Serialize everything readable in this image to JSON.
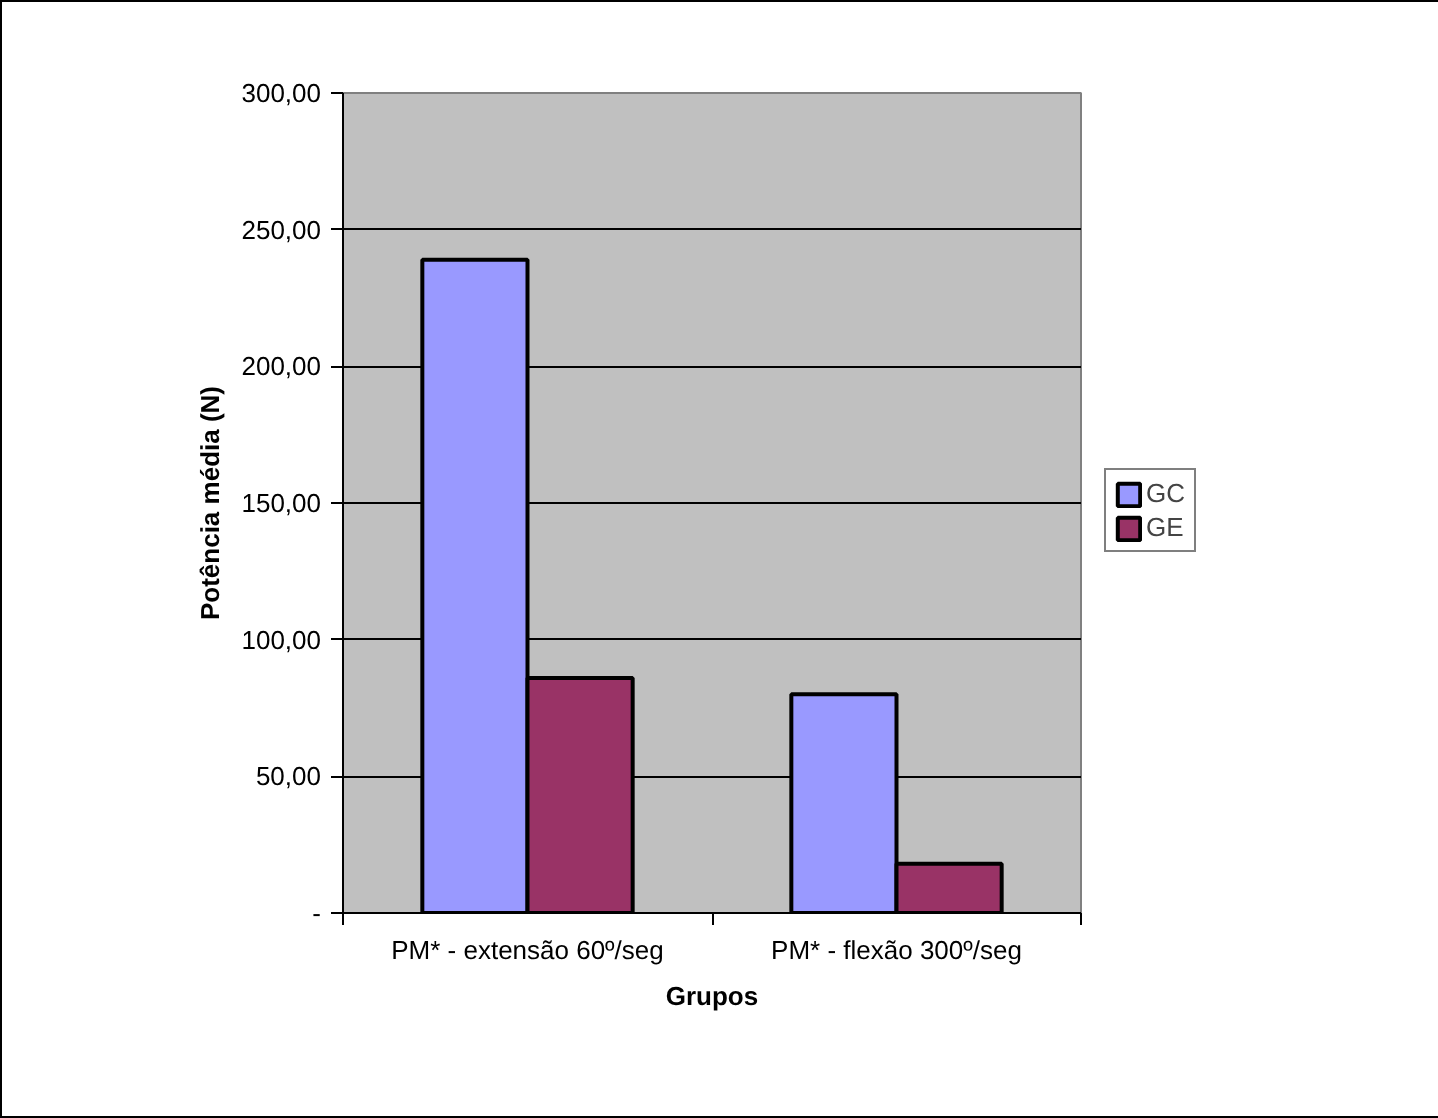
{
  "chart_data": {
    "type": "bar",
    "xlabel": "Grupos",
    "ylabel": "Potência média (N)",
    "categories": [
      "PM* - extensão 60º/seg",
      "PM* - flexão 300º/seg"
    ],
    "series": [
      {
        "name": "GC",
        "color": "#9999ff",
        "values": [
          239,
          80
        ]
      },
      {
        "name": "GE",
        "color": "#993366",
        "values": [
          86,
          18
        ]
      }
    ],
    "ylim": [
      0,
      300
    ],
    "yticks": [
      {
        "value": 0,
        "label": "-"
      },
      {
        "value": 50,
        "label": "50,00"
      },
      {
        "value": 100,
        "label": "100,00"
      },
      {
        "value": 150,
        "label": "150,00"
      },
      {
        "value": 200,
        "label": "200,00"
      },
      {
        "value": 250,
        "label": "250,00"
      },
      {
        "value": 300,
        "label": "300,00"
      }
    ],
    "grid": "y",
    "legend": "right"
  }
}
